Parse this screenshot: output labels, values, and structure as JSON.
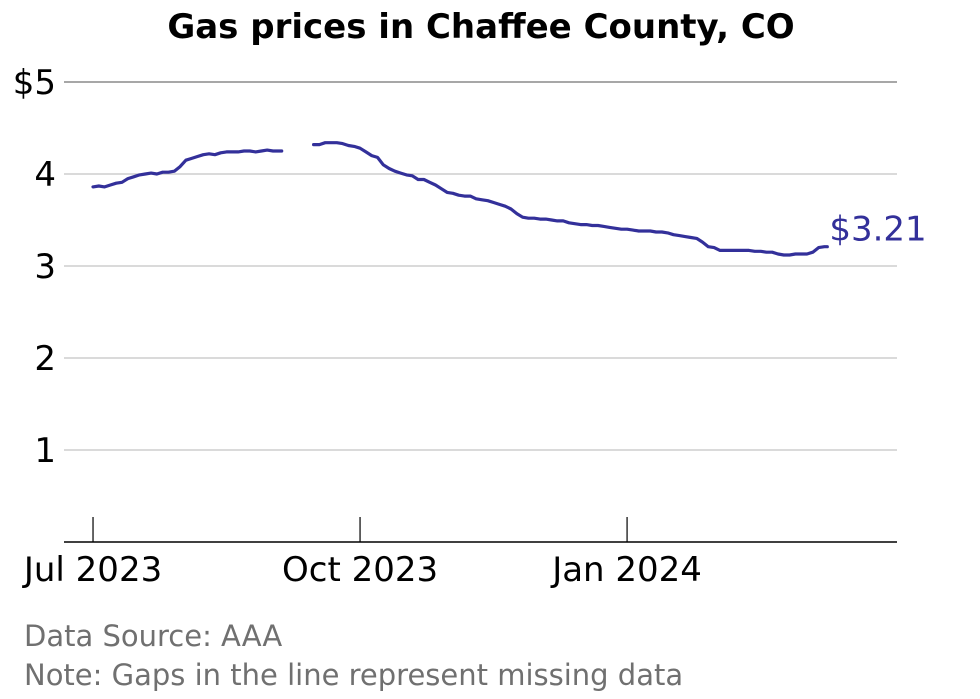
{
  "chart_data": {
    "type": "line",
    "title": "Gas prices in Chaffee County, CO",
    "y_ticks": [
      {
        "value": 1,
        "label": "1"
      },
      {
        "value": 2,
        "label": "2"
      },
      {
        "value": 3,
        "label": "3"
      },
      {
        "value": 4,
        "label": "4"
      },
      {
        "value": 5,
        "label": "$5"
      }
    ],
    "ylim": [
      0,
      5
    ],
    "x_ticks": [
      {
        "date": "2023-07-01",
        "label": "Jul 2023"
      },
      {
        "date": "2023-10-01",
        "label": "Oct 2023"
      },
      {
        "date": "2024-01-01",
        "label": "Jan 2024"
      }
    ],
    "xlim": [
      "2023-06-21",
      "2024-04-03"
    ],
    "grid": true,
    "line_color": "#33309a",
    "end_label": "$3.21",
    "series": [
      {
        "segments": [
          [
            [
              "2023-07-01",
              3.86
            ],
            [
              "2023-07-03",
              3.87
            ],
            [
              "2023-07-05",
              3.86
            ],
            [
              "2023-07-07",
              3.88
            ],
            [
              "2023-07-09",
              3.9
            ],
            [
              "2023-07-11",
              3.91
            ],
            [
              "2023-07-13",
              3.95
            ],
            [
              "2023-07-15",
              3.97
            ],
            [
              "2023-07-17",
              3.99
            ],
            [
              "2023-07-19",
              4.0
            ],
            [
              "2023-07-21",
              4.01
            ],
            [
              "2023-07-23",
              4.0
            ],
            [
              "2023-07-25",
              4.02
            ],
            [
              "2023-07-27",
              4.02
            ],
            [
              "2023-07-29",
              4.03
            ],
            [
              "2023-07-31",
              4.08
            ],
            [
              "2023-08-02",
              4.15
            ],
            [
              "2023-08-04",
              4.17
            ],
            [
              "2023-08-06",
              4.19
            ],
            [
              "2023-08-08",
              4.21
            ],
            [
              "2023-08-10",
              4.22
            ],
            [
              "2023-08-12",
              4.21
            ],
            [
              "2023-08-14",
              4.23
            ],
            [
              "2023-08-16",
              4.24
            ],
            [
              "2023-08-18",
              4.24
            ],
            [
              "2023-08-20",
              4.24
            ],
            [
              "2023-08-22",
              4.25
            ],
            [
              "2023-08-24",
              4.25
            ],
            [
              "2023-08-26",
              4.24
            ],
            [
              "2023-08-28",
              4.25
            ],
            [
              "2023-08-30",
              4.26
            ],
            [
              "2023-09-01",
              4.25
            ],
            [
              "2023-09-04",
              4.25
            ]
          ],
          [
            [
              "2023-09-15",
              4.32
            ],
            [
              "2023-09-17",
              4.32
            ],
            [
              "2023-09-19",
              4.34
            ],
            [
              "2023-09-21",
              4.34
            ],
            [
              "2023-09-23",
              4.34
            ],
            [
              "2023-09-25",
              4.33
            ],
            [
              "2023-09-27",
              4.31
            ],
            [
              "2023-09-29",
              4.3
            ],
            [
              "2023-10-01",
              4.28
            ],
            [
              "2023-10-03",
              4.24
            ],
            [
              "2023-10-05",
              4.2
            ],
            [
              "2023-10-07",
              4.18
            ],
            [
              "2023-10-09",
              4.1
            ],
            [
              "2023-10-11",
              4.06
            ],
            [
              "2023-10-13",
              4.03
            ],
            [
              "2023-10-15",
              4.01
            ],
            [
              "2023-10-17",
              3.99
            ],
            [
              "2023-10-19",
              3.98
            ],
            [
              "2023-10-21",
              3.94
            ],
            [
              "2023-10-23",
              3.94
            ],
            [
              "2023-10-25",
              3.91
            ],
            [
              "2023-10-27",
              3.88
            ],
            [
              "2023-10-29",
              3.84
            ],
            [
              "2023-10-31",
              3.8
            ],
            [
              "2023-11-02",
              3.79
            ],
            [
              "2023-11-04",
              3.77
            ],
            [
              "2023-11-06",
              3.76
            ],
            [
              "2023-11-08",
              3.76
            ],
            [
              "2023-11-10",
              3.73
            ],
            [
              "2023-11-12",
              3.72
            ],
            [
              "2023-11-14",
              3.71
            ],
            [
              "2023-11-16",
              3.69
            ],
            [
              "2023-11-18",
              3.67
            ],
            [
              "2023-11-20",
              3.65
            ],
            [
              "2023-11-22",
              3.62
            ],
            [
              "2023-11-24",
              3.57
            ],
            [
              "2023-11-26",
              3.53
            ],
            [
              "2023-11-28",
              3.52
            ],
            [
              "2023-11-30",
              3.52
            ],
            [
              "2023-12-02",
              3.51
            ],
            [
              "2023-12-04",
              3.51
            ],
            [
              "2023-12-06",
              3.5
            ],
            [
              "2023-12-08",
              3.49
            ],
            [
              "2023-12-10",
              3.49
            ],
            [
              "2023-12-12",
              3.47
            ],
            [
              "2023-12-14",
              3.46
            ],
            [
              "2023-12-16",
              3.45
            ],
            [
              "2023-12-18",
              3.45
            ],
            [
              "2023-12-20",
              3.44
            ],
            [
              "2023-12-22",
              3.44
            ],
            [
              "2023-12-24",
              3.43
            ],
            [
              "2023-12-26",
              3.42
            ],
            [
              "2023-12-28",
              3.41
            ],
            [
              "2023-12-30",
              3.4
            ],
            [
              "2024-01-01",
              3.4
            ],
            [
              "2024-01-03",
              3.39
            ],
            [
              "2024-01-05",
              3.38
            ],
            [
              "2024-01-07",
              3.38
            ],
            [
              "2024-01-09",
              3.38
            ],
            [
              "2024-01-11",
              3.37
            ],
            [
              "2024-01-13",
              3.37
            ],
            [
              "2024-01-15",
              3.36
            ],
            [
              "2024-01-17",
              3.34
            ],
            [
              "2024-01-19",
              3.33
            ],
            [
              "2024-01-21",
              3.32
            ],
            [
              "2024-01-23",
              3.31
            ],
            [
              "2024-01-25",
              3.3
            ],
            [
              "2024-01-27",
              3.26
            ],
            [
              "2024-01-29",
              3.21
            ],
            [
              "2024-01-31",
              3.2
            ],
            [
              "2024-02-02",
              3.17
            ],
            [
              "2024-02-04",
              3.17
            ],
            [
              "2024-02-06",
              3.17
            ],
            [
              "2024-02-08",
              3.17
            ],
            [
              "2024-02-10",
              3.17
            ],
            [
              "2024-02-12",
              3.17
            ],
            [
              "2024-02-14",
              3.16
            ],
            [
              "2024-02-16",
              3.16
            ],
            [
              "2024-02-18",
              3.15
            ],
            [
              "2024-02-20",
              3.15
            ],
            [
              "2024-02-22",
              3.13
            ],
            [
              "2024-02-24",
              3.12
            ],
            [
              "2024-02-26",
              3.12
            ],
            [
              "2024-02-28",
              3.13
            ],
            [
              "2024-03-01",
              3.13
            ],
            [
              "2024-03-03",
              3.13
            ],
            [
              "2024-03-05",
              3.15
            ],
            [
              "2024-03-07",
              3.2
            ],
            [
              "2024-03-09",
              3.21
            ],
            [
              "2024-03-10",
              3.21
            ]
          ]
        ]
      }
    ]
  },
  "footer": {
    "source": "Data Source: AAA",
    "note": "Note: Gaps in the line represent missing data"
  }
}
